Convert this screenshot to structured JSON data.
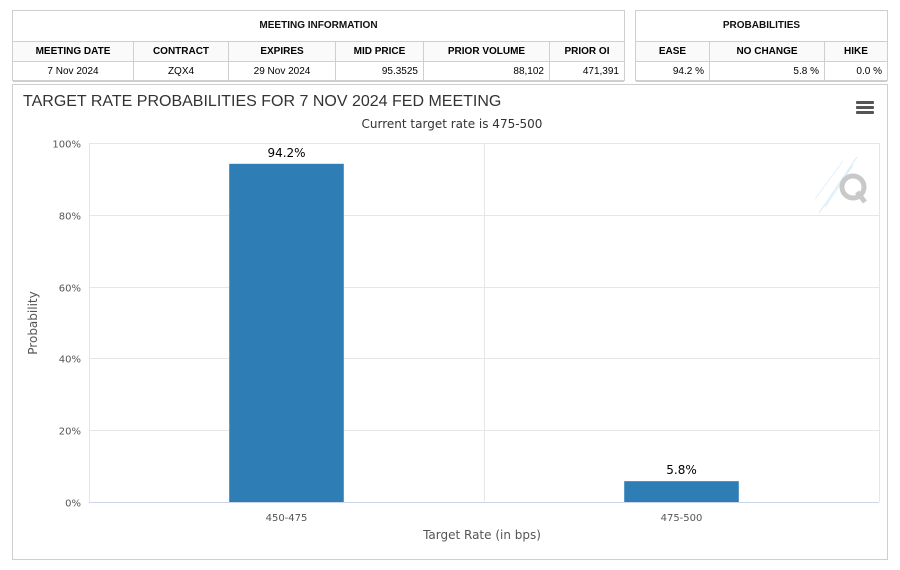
{
  "meeting_info": {
    "title": "MEETING INFORMATION",
    "headers": [
      "MEETING DATE",
      "CONTRACT",
      "EXPIRES",
      "MID PRICE",
      "PRIOR VOLUME",
      "PRIOR OI"
    ],
    "values": [
      "7 Nov 2024",
      "ZQX4",
      "29 Nov 2024",
      "95.3525",
      "88,102",
      "471,391"
    ]
  },
  "probabilities": {
    "title": "PROBABILITIES",
    "headers": [
      "EASE",
      "NO CHANGE",
      "HIKE"
    ],
    "values": [
      "94.2 %",
      "5.8 %",
      "0.0 %"
    ]
  },
  "chart_data": {
    "type": "bar",
    "title": "TARGET RATE PROBABILITIES FOR 7 NOV 2024 FED MEETING",
    "subtitle": "Current target rate is 475-500",
    "categories": [
      "450-475",
      "475-500"
    ],
    "values": [
      94.2,
      5.8
    ],
    "data_labels": [
      "94.2%",
      "5.8%"
    ],
    "xlabel": "Target Rate (in bps)",
    "ylabel": "Probability",
    "ylim": [
      0,
      100
    ],
    "yticks": [
      0,
      20,
      40,
      60,
      80,
      100
    ],
    "ytick_labels": [
      "0%",
      "20%",
      "40%",
      "60%",
      "80%",
      "100%"
    ],
    "grid": true,
    "bar_color": "#2e7db5"
  },
  "icons": {
    "menu": "hamburger-menu-icon",
    "logo": "q-logo-icon"
  }
}
